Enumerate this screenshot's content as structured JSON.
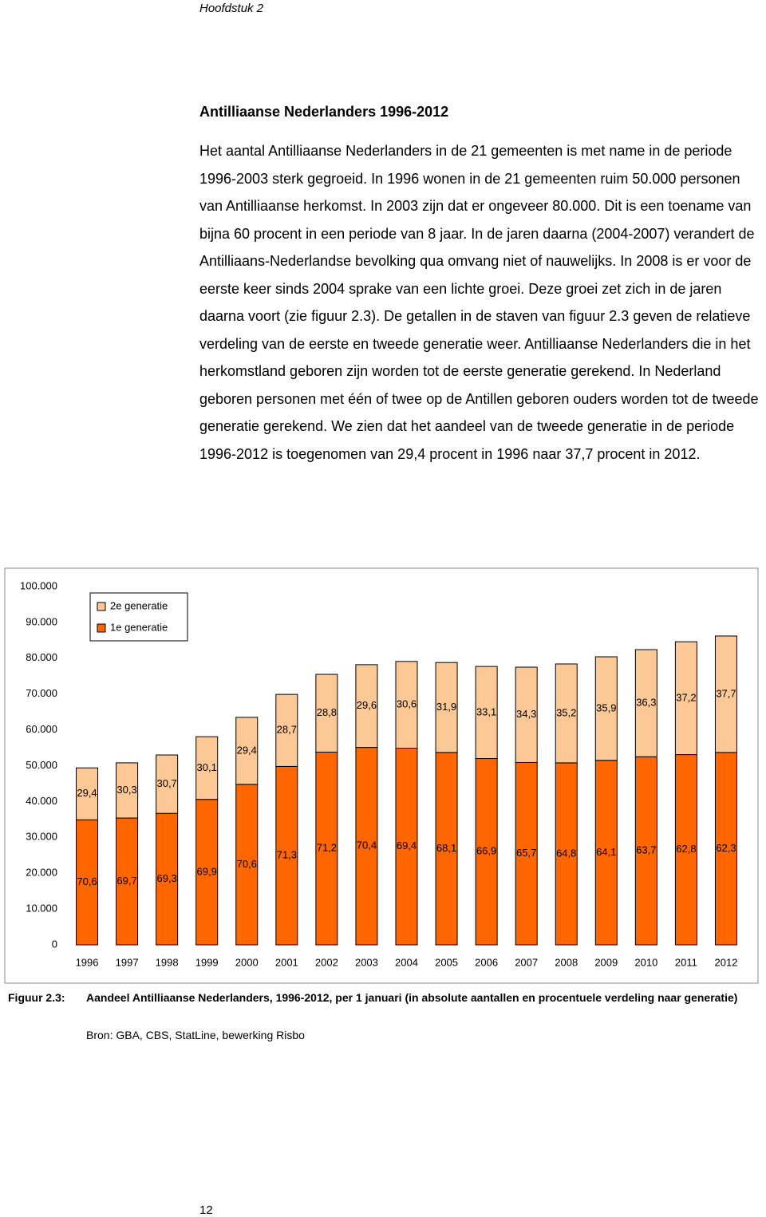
{
  "header": {
    "chapter": "Hoofdstuk 2"
  },
  "section": {
    "title": "Antilliaanse Nederlanders 1996-2012",
    "paragraph": "Het aantal Antilliaanse Nederlanders in de 21 gemeenten is met name in de periode 1996-2003 sterk gegroeid. In 1996 wonen in de 21 gemeenten ruim 50.000 personen van Antilliaanse herkomst. In 2003 zijn dat er ongeveer 80.000. Dit is een toename van bijna 60 procent in een periode van 8 jaar. In de jaren daarna (2004-2007) verandert de Antilliaans-Nederlandse bevolking qua omvang niet of nauwelijks. In 2008 is er voor de eerste keer sinds 2004 sprake van een lichte groei. Deze groei zet zich in de jaren daarna voort (zie figuur 2.3). De getallen in de staven van figuur 2.3 geven de relatieve verdeling van de eerste en tweede generatie weer. Antilliaanse Nederlanders die in het herkomstland geboren zijn worden tot de eerste generatie gerekend. In Nederland geboren personen met één of twee op de Antillen geboren ouders worden tot de tweede generatie gerekend. We zien dat het aandeel van de tweede generatie in de periode 1996-2012 is toegenomen van 29,4 procent in 1996 naar 37,7 procent in 2012."
  },
  "chart_data": {
    "type": "stacked_bar",
    "categories": [
      "1996",
      "1997",
      "1998",
      "1999",
      "2000",
      "2001",
      "2002",
      "2003",
      "2004",
      "2005",
      "2006",
      "2007",
      "2008",
      "2009",
      "2010",
      "2011",
      "2012"
    ],
    "series": [
      {
        "name": "1e generatie",
        "color": "#ff6600",
        "values": [
          34900,
          35400,
          36700,
          40600,
          44800,
          49800,
          53800,
          55100,
          54900,
          53700,
          52000,
          50900,
          50800,
          51500,
          52500,
          53100,
          53700
        ],
        "percent_labels": [
          "70,6",
          "69,7",
          "69,3",
          "69,9",
          "70,6",
          "71,3",
          "71,2",
          "70,4",
          "69,4",
          "68,1",
          "66,9",
          "65,7",
          "64,8",
          "64,1",
          "63,7",
          "62,8",
          "62,3"
        ]
      },
      {
        "name": "2e generatie",
        "color": "#fcc895",
        "values": [
          14500,
          15400,
          16300,
          17500,
          18700,
          20100,
          21700,
          23100,
          24200,
          25100,
          25700,
          26600,
          27600,
          28900,
          29900,
          31500,
          32500
        ],
        "percent_labels": [
          "29,4",
          "30,3",
          "30,7",
          "30,1",
          "29,4",
          "28,7",
          "28,8",
          "29,6",
          "30,6",
          "31,9",
          "33,1",
          "34,3",
          "35,2",
          "35,9",
          "36,3",
          "37,2",
          "37,7"
        ]
      }
    ],
    "ylim": [
      0,
      100000
    ],
    "yticks": [
      0,
      {
        "value": 10000,
        "label": "10.000"
      },
      {
        "value": 20000,
        "label": "20.000"
      },
      {
        "value": 30000,
        "label": "30.000"
      },
      {
        "value": 40000,
        "label": "40.000"
      },
      {
        "value": 50000,
        "label": "50.000"
      },
      {
        "value": 60000,
        "label": "60.000"
      },
      {
        "value": 70000,
        "label": "70.000"
      },
      {
        "value": 80000,
        "label": "80.000"
      },
      {
        "value": 90000,
        "label": "90.000"
      },
      {
        "value": 100000,
        "label": "100.000"
      }
    ],
    "grid": false,
    "legend": "top-left"
  },
  "caption": {
    "label": "Figuur 2.3:",
    "text": "Aandeel Antilliaanse Nederlanders, 1996-2012, per 1 januari (in absolute aantallen en procentuele verdeling naar generatie)",
    "source": "Bron: GBA, CBS, StatLine, bewerking Risbo"
  },
  "footer": {
    "page": "12"
  }
}
